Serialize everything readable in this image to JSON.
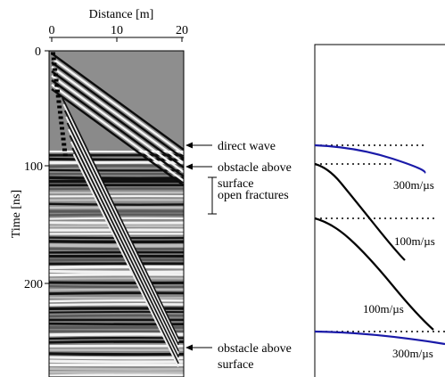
{
  "figure": {
    "left_panel": {
      "x_axis": {
        "label": "Distance [m]",
        "ticks": [
          "0",
          "10",
          "20"
        ]
      },
      "y_axis": {
        "label": "Time [ns]",
        "ticks": [
          "0",
          "100",
          "200"
        ]
      },
      "annotations": [
        "direct wave",
        "obstacle above",
        "surface",
        "open fractures",
        "obstacle above",
        "surface"
      ]
    },
    "right_panel": {
      "velocity_labels": [
        "300m/µs",
        "100m/µs",
        "100m/µs",
        "300m/µs"
      ],
      "colors": {
        "air_wave": "#1a1aa8",
        "ground_wave": "#000000"
      }
    }
  }
}
